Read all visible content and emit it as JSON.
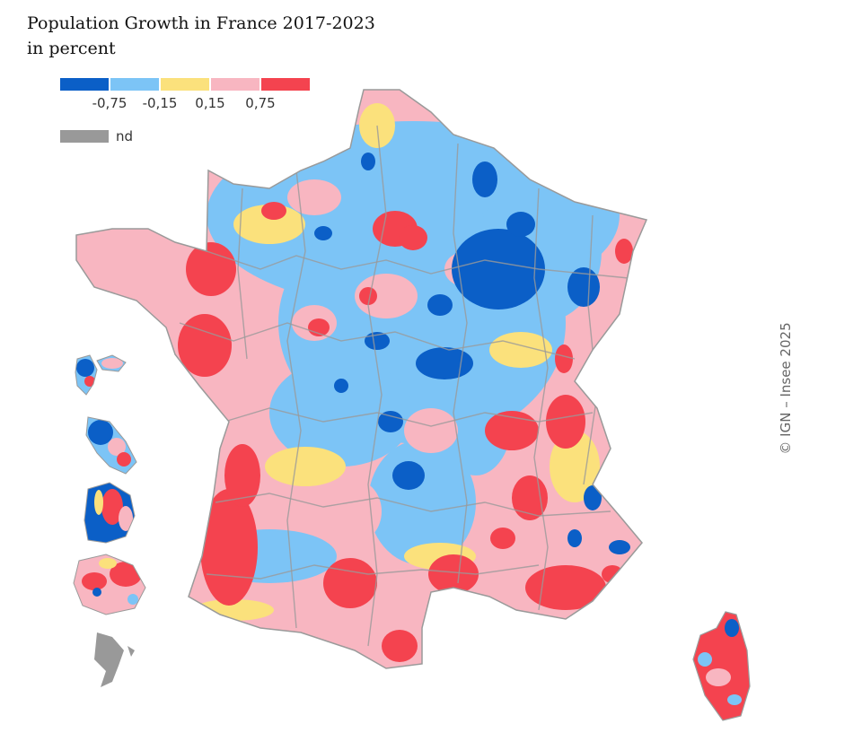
{
  "header": {
    "title": "Population Growth in France 2017-2023",
    "subtitle": "in percent"
  },
  "legend": {
    "colors": [
      "#0b5fc7",
      "#7cc4f6",
      "#fbe17c",
      "#f8b6c1",
      "#f4434f"
    ],
    "thresholds": [
      "-0,75",
      "-0,15",
      "0,15",
      "0,75"
    ],
    "nd_label": "nd",
    "nd_color": "#999999"
  },
  "credit": "© IGN – Insee 2025",
  "map": {
    "border_color": "#9a9a9a",
    "territories": [
      "metropolitan-france",
      "corsica",
      "guadeloupe",
      "martinique",
      "guyane",
      "la-reunion",
      "mayotte"
    ]
  }
}
